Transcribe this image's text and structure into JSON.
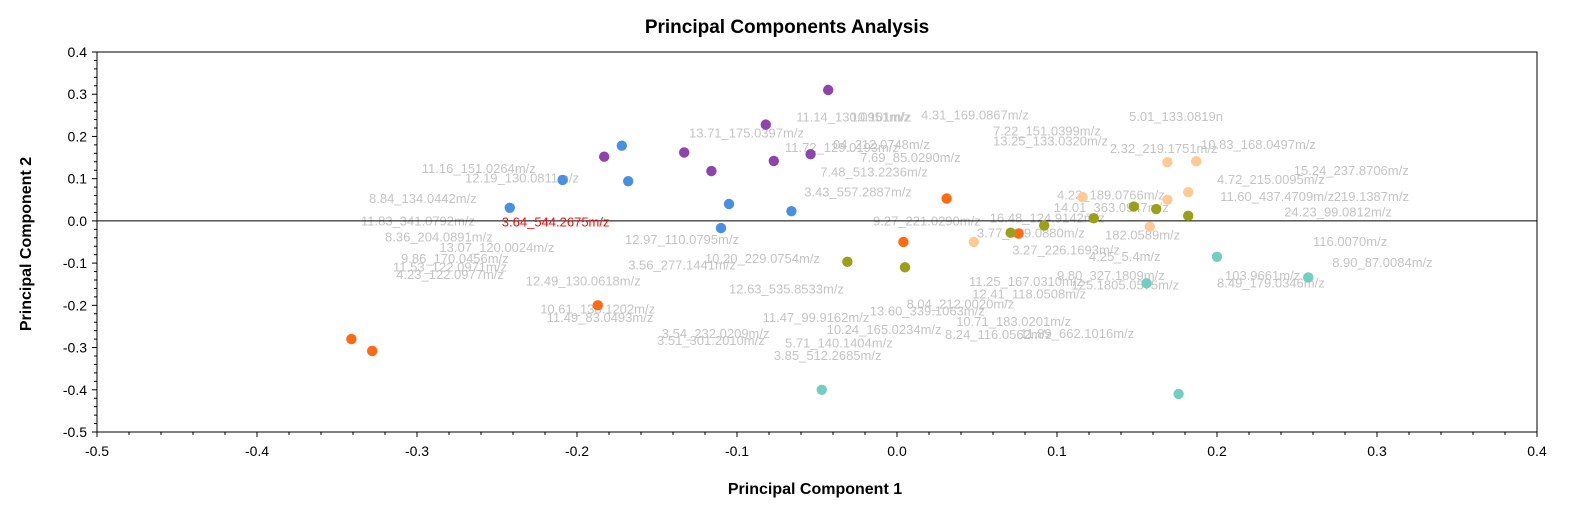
{
  "chart_data": {
    "type": "scatter",
    "title": "Principal Components Analysis",
    "xlabel": "Principal Component 1",
    "ylabel": "Principal Component 2",
    "xlim": [
      -0.5,
      0.4
    ],
    "ylim": [
      -0.5,
      0.4
    ],
    "x_ticks": [
      "-0.5",
      "-0.4",
      "-0.3",
      "-0.2",
      "-0.1",
      "0.0",
      "0.1",
      "0.2",
      "0.3",
      "0.4"
    ],
    "y_ticks": [
      "0.4",
      "0.3",
      "0.2",
      "0.1",
      "0.0",
      "-0.1",
      "-0.2",
      "-0.3",
      "-0.4",
      "-0.5"
    ],
    "grid": false,
    "zero_line": true,
    "series": [
      {
        "color": "#8e44ad",
        "points": [
          [
            -0.043,
            0.31
          ],
          [
            -0.082,
            0.228
          ],
          [
            -0.054,
            0.158
          ],
          [
            -0.133,
            0.162
          ],
          [
            -0.077,
            0.142
          ],
          [
            -0.183,
            0.152
          ],
          [
            -0.116,
            0.118
          ]
        ]
      },
      {
        "color": "#4a90e2",
        "points": [
          [
            -0.172,
            0.178
          ],
          [
            -0.209,
            0.097
          ],
          [
            -0.168,
            0.094
          ],
          [
            -0.242,
            0.031
          ],
          [
            -0.105,
            0.04
          ],
          [
            -0.066,
            0.023
          ],
          [
            -0.11,
            -0.017
          ]
        ]
      },
      {
        "color": "#ff6a13",
        "points": [
          [
            -0.341,
            -0.28
          ],
          [
            -0.328,
            -0.308
          ],
          [
            -0.187,
            -0.2
          ],
          [
            0.031,
            0.053
          ],
          [
            0.004,
            -0.05
          ],
          [
            0.076,
            -0.03
          ]
        ]
      },
      {
        "color": "#9aa017",
        "points": [
          [
            -0.031,
            -0.097
          ],
          [
            0.005,
            -0.11
          ],
          [
            0.071,
            -0.028
          ],
          [
            0.092,
            -0.011
          ],
          [
            0.123,
            0.006
          ],
          [
            0.148,
            0.034
          ],
          [
            0.162,
            0.028
          ],
          [
            0.182,
            0.012
          ]
        ]
      },
      {
        "color": "#ffcb95",
        "points": [
          [
            0.048,
            -0.05
          ],
          [
            0.116,
            0.056
          ],
          [
            0.158,
            -0.014
          ],
          [
            0.169,
            0.139
          ],
          [
            0.187,
            0.141
          ],
          [
            0.169,
            0.05
          ],
          [
            0.182,
            0.068
          ]
        ]
      },
      {
        "color": "#71cec0",
        "points": [
          [
            -0.047,
            -0.4
          ],
          [
            0.156,
            -0.148
          ],
          [
            0.2,
            -0.085
          ],
          [
            0.176,
            -0.41
          ],
          [
            0.257,
            -0.134
          ]
        ]
      }
    ],
    "labels": [
      {
        "text": "3.64_544.2675m/z",
        "x": -0.247,
        "y": -0.004,
        "highlight": true
      },
      {
        "text": "11.14_130.0951m/z",
        "x": -0.063,
        "y": 0.245
      },
      {
        "text": "10.101m/z",
        "x": -0.029,
        "y": 0.245
      },
      {
        "text": "4.31_169.0867m/z",
        "x": 0.015,
        "y": 0.25
      },
      {
        "text": "5.01_133.0819n",
        "x": 0.145,
        "y": 0.246
      },
      {
        "text": "13.71_175.0397m/z",
        "x": -0.13,
        "y": 0.207
      },
      {
        "text": "11.72_129.0193m/z",
        "x": -0.07,
        "y": 0.173
      },
      {
        "text": "04_212.0748m/z",
        "x": -0.04,
        "y": 0.18
      },
      {
        "text": "7.22_151.0399m/z",
        "x": 0.06,
        "y": 0.212
      },
      {
        "text": "13.25_133.0320m/z",
        "x": 0.06,
        "y": 0.188
      },
      {
        "text": "10.83_168.0497m/z",
        "x": 0.19,
        "y": 0.18
      },
      {
        "text": "2.32_219.1751m/z",
        "x": 0.133,
        "y": 0.17
      },
      {
        "text": "7.69_85.0290m/z",
        "x": -0.023,
        "y": 0.149
      },
      {
        "text": "11.16_151.0264m/z",
        "x": -0.297,
        "y": 0.123
      },
      {
        "text": "12.19_130.0811m/z",
        "x": -0.27,
        "y": 0.1
      },
      {
        "text": "7.48_513.2236m/z",
        "x": -0.048,
        "y": 0.115
      },
      {
        "text": "4.72_215.0095m/z",
        "x": 0.2,
        "y": 0.097
      },
      {
        "text": "15.24_237.8706m/z",
        "x": 0.248,
        "y": 0.118
      },
      {
        "text": "3.43_557.2887m/z",
        "x": -0.058,
        "y": 0.067
      },
      {
        "text": "8.84_134.0442m/z",
        "x": -0.33,
        "y": 0.052
      },
      {
        "text": "4.23_189.0766m/z",
        "x": 0.1,
        "y": 0.06
      },
      {
        "text": "11.60_437.4709m/z",
        "x": 0.202,
        "y": 0.056
      },
      {
        "text": "219.1387m/z",
        "x": 0.273,
        "y": 0.056
      },
      {
        "text": "14.01_363.0947m/z",
        "x": 0.098,
        "y": 0.03
      },
      {
        "text": "24.23_99.0812m/z",
        "x": 0.242,
        "y": 0.02
      },
      {
        "text": "11.83_341.0792m/z",
        "x": -0.335,
        "y": -0.001
      },
      {
        "text": "9.27_221.0290m/z",
        "x": -0.015,
        "y": -0.001
      },
      {
        "text": "16.48_124.9142m/z",
        "x": 0.058,
        "y": 0.006
      },
      {
        "text": "8.36_204.0891m/z",
        "x": -0.32,
        "y": -0.039
      },
      {
        "text": "12.97_110.0795m/z",
        "x": -0.17,
        "y": -0.045
      },
      {
        "text": "3.77_189.0880m/z",
        "x": 0.05,
        "y": -0.03
      },
      {
        "text": "182.0589m/z",
        "x": 0.13,
        "y": -0.035
      },
      {
        "text": "13.07_120.0024m/z",
        "x": -0.286,
        "y": -0.064
      },
      {
        "text": "3.27_226.1693m/z",
        "x": 0.072,
        "y": -0.07
      },
      {
        "text": "4.25_5.4m/z",
        "x": 0.12,
        "y": -0.085
      },
      {
        "text": "9.86_170.0456m/z",
        "x": -0.31,
        "y": -0.09
      },
      {
        "text": "116.0070m/z",
        "x": 0.26,
        "y": -0.05
      },
      {
        "text": "10.20_229.0754m/z",
        "x": -0.12,
        "y": -0.09
      },
      {
        "text": "3.56_277.1441m/z",
        "x": -0.168,
        "y": -0.106
      },
      {
        "text": "11.53_122.0971m/z",
        "x": -0.315,
        "y": -0.11
      },
      {
        "text": "4.23_122.0977m/z",
        "x": -0.313,
        "y": -0.128
      },
      {
        "text": "8.90_87.0084m/z",
        "x": 0.272,
        "y": -0.1
      },
      {
        "text": "12.49_130.0618m/z",
        "x": -0.232,
        "y": -0.143
      },
      {
        "text": "8.49_179.0346m/z",
        "x": 0.2,
        "y": -0.148
      },
      {
        "text": "9.80_327.1809m/z",
        "x": 0.1,
        "y": -0.13
      },
      {
        "text": "125.1805.0575m/z",
        "x": 0.109,
        "y": -0.153
      },
      {
        "text": "12.63_535.8533m/z",
        "x": -0.105,
        "y": -0.163
      },
      {
        "text": "11.25_167.0310m/z",
        "x": 0.045,
        "y": -0.145
      },
      {
        "text": "12.41_118.0508m/z",
        "x": 0.047,
        "y": -0.174
      },
      {
        "text": "103.9661m/z",
        "x": 0.205,
        "y": -0.13
      },
      {
        "text": "8.04_212.0020m/z",
        "x": 0.006,
        "y": -0.198
      },
      {
        "text": "10.61_138.1202m/z",
        "x": -0.223,
        "y": -0.21
      },
      {
        "text": "13.60_339.1063m/z",
        "x": -0.017,
        "y": -0.215
      },
      {
        "text": "11.49_83.0493m/z",
        "x": -0.219,
        "y": -0.23
      },
      {
        "text": "11.47_99.9162m/z",
        "x": -0.084,
        "y": -0.23
      },
      {
        "text": "10.71_183.0201m/z",
        "x": 0.037,
        "y": -0.24
      },
      {
        "text": "10.24_165.0234m/z",
        "x": -0.044,
        "y": -0.258
      },
      {
        "text": "3.54_232.0209m/z",
        "x": -0.147,
        "y": -0.268
      },
      {
        "text": "11.89_662.1016m/z",
        "x": 0.077,
        "y": -0.268
      },
      {
        "text": "8.24_116.0562m/z",
        "x": 0.03,
        "y": -0.27
      },
      {
        "text": "3.51_301.2010m/z",
        "x": -0.15,
        "y": -0.285
      },
      {
        "text": "5.71_140.1404m/z",
        "x": -0.07,
        "y": -0.29
      },
      {
        "text": "3.85_512.2685m/z",
        "x": -0.077,
        "y": -0.32
      }
    ]
  }
}
